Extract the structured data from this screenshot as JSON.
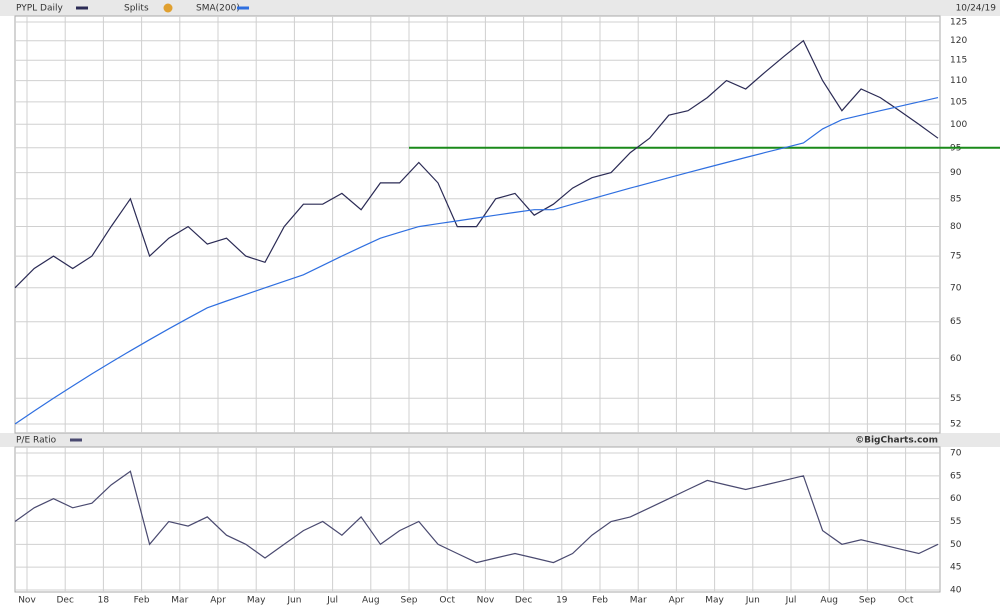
{
  "chart_data": [
    {
      "type": "line",
      "title": "PYPL Daily",
      "splits_label": "Splits",
      "date_label": "10/24/19",
      "log_scale": true,
      "grid": true,
      "months": [
        "Nov",
        "Dec",
        "18",
        "Feb",
        "Mar",
        "Apr",
        "May",
        "Jun",
        "Jul",
        "Aug",
        "Sep",
        "Oct",
        "Nov",
        "Dec",
        "19",
        "Feb",
        "Mar",
        "Apr",
        "May",
        "Jun",
        "Jul",
        "Aug",
        "Sep",
        "Oct"
      ],
      "series": [
        {
          "name": "PYPL Daily",
          "color": "#2b2b55",
          "values": [
            70,
            73,
            75,
            73,
            75,
            80,
            85,
            75,
            78,
            80,
            77,
            78,
            75,
            74,
            80,
            84,
            84,
            86,
            83,
            88,
            88,
            92,
            88,
            80,
            80,
            85,
            86,
            82,
            84,
            87,
            89,
            90,
            94,
            97,
            102,
            103,
            106,
            110,
            108,
            112,
            116,
            120,
            110,
            103,
            108,
            106,
            103,
            100,
            97
          ]
        },
        {
          "name": "SMA(200)",
          "color": "#2f6fe0",
          "values": [
            52,
            53.5,
            55,
            56.5,
            58,
            59.5,
            61,
            62.5,
            64,
            65.5,
            67,
            68,
            69,
            70,
            71,
            72,
            73.5,
            75,
            76.5,
            78,
            79,
            80,
            80.5,
            81,
            81.5,
            82,
            82.5,
            83,
            83,
            84,
            85,
            86,
            87,
            88,
            89,
            90,
            91,
            92,
            93,
            94,
            95,
            96,
            99,
            101,
            102,
            103,
            104,
            105,
            106
          ]
        }
      ],
      "hline": {
        "value": 95,
        "color": "#1a8a1a"
      },
      "ylim": [
        52,
        125
      ],
      "yticks": [
        52,
        55,
        60,
        65,
        70,
        75,
        80,
        85,
        90,
        95,
        100,
        105,
        110,
        115,
        120,
        125
      ]
    },
    {
      "type": "line",
      "title": "P/E Ratio",
      "credit": "©BigCharts.com",
      "grid": true,
      "series": [
        {
          "name": "P/E Ratio",
          "color": "#4a4a70",
          "values": [
            55,
            58,
            60,
            58,
            59,
            63,
            66,
            50,
            55,
            54,
            56,
            52,
            50,
            47,
            50,
            53,
            55,
            52,
            56,
            50,
            53,
            55,
            50,
            48,
            46,
            47,
            48,
            47,
            46,
            48,
            52,
            55,
            56,
            58,
            60,
            62,
            64,
            63,
            62,
            63,
            64,
            65,
            53,
            50,
            51,
            50,
            49,
            48,
            50
          ]
        }
      ],
      "ylim": [
        40,
        70
      ],
      "yticks": [
        40,
        45,
        50,
        55,
        60,
        65,
        70
      ]
    }
  ]
}
